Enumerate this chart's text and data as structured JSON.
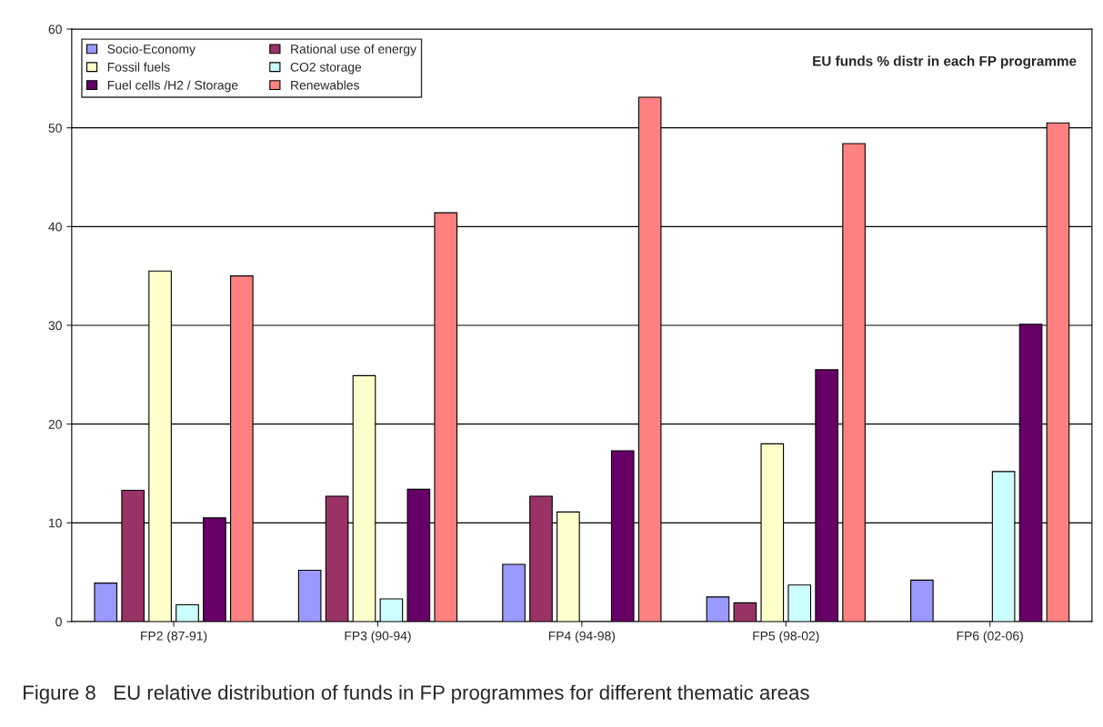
{
  "chart_data": {
    "type": "bar",
    "title": "EU funds % distr in each FP programme",
    "categories": [
      "FP2 (87-91)",
      "FP3 (90-94)",
      "FP4 (94-98)",
      "FP5 (98-02)",
      "FP6 (02-06)"
    ],
    "series": [
      {
        "name": "Socio-Economy",
        "color": "#9999ff",
        "values": [
          3.9,
          5.2,
          5.8,
          2.5,
          4.2
        ]
      },
      {
        "name": "Rational use of energy",
        "color": "#993366",
        "values": [
          13.3,
          12.7,
          12.7,
          1.9,
          null
        ]
      },
      {
        "name": "Fossil fuels",
        "color": "#ffffcc",
        "values": [
          35.5,
          24.9,
          11.1,
          18.0,
          null
        ]
      },
      {
        "name": "CO2 storage",
        "color": "#ccffff",
        "values": [
          1.7,
          2.3,
          null,
          3.7,
          15.2
        ]
      },
      {
        "name": "Fuel cells /H2 / Storage",
        "color": "#660066",
        "values": [
          10.5,
          13.4,
          17.3,
          25.5,
          30.1
        ]
      },
      {
        "name": "Renewables",
        "color": "#ff8080",
        "values": [
          35.0,
          41.4,
          53.1,
          48.4,
          50.5
        ]
      }
    ],
    "ylim": [
      0,
      60
    ],
    "yticks": [
      0,
      10,
      20,
      30,
      40,
      50,
      60
    ],
    "grid": "y",
    "legend": "top left",
    "annotations": [
      "Figure 8   EU relative distribution of funds in FP programmes for different thematic areas"
    ]
  }
}
